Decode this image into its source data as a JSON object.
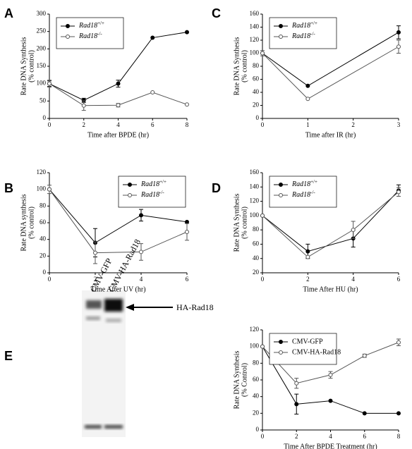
{
  "chart_data": [
    {
      "type": "line",
      "panel": "A",
      "xlabel": "Time after BPDE (hr)",
      "ylabel": [
        "Rate DNA Synthesis",
        "(% control)"
      ],
      "xlim": [
        0,
        8
      ],
      "xticks": [
        0,
        2,
        4,
        6,
        8
      ],
      "ylim": [
        0,
        300
      ],
      "yticks": [
        0,
        50,
        100,
        150,
        200,
        250,
        300
      ],
      "legend": "upper left",
      "legend_superscript": true,
      "series": [
        {
          "name": "Rad18+/+",
          "color": "#000000",
          "marker_fill": "#000000",
          "x": [
            0,
            2,
            4,
            6,
            8
          ],
          "values": [
            100,
            52,
            100,
            232,
            248
          ],
          "errors": [
            8,
            6,
            10,
            null,
            null
          ]
        },
        {
          "name": "Rad18-/-",
          "color": "#555555",
          "marker_fill": "#ffffff",
          "x": [
            0,
            2,
            4,
            6,
            8
          ],
          "values": [
            100,
            37,
            38,
            75,
            40
          ],
          "errors": [
            10,
            14,
            5,
            null,
            null
          ]
        }
      ]
    },
    {
      "type": "line",
      "panel": "C",
      "xlabel": "Time after IR (hr)",
      "ylabel": [
        "Rate DNA Synthesis",
        "(% control)"
      ],
      "xlim": [
        0,
        3
      ],
      "xticks": [
        0,
        1,
        2,
        3
      ],
      "ylim": [
        0,
        160
      ],
      "yticks": [
        0,
        20,
        40,
        60,
        80,
        100,
        120,
        140,
        160
      ],
      "legend": "upper left",
      "legend_superscript": true,
      "series": [
        {
          "name": "Rad18+/+",
          "color": "#000000",
          "marker_fill": "#000000",
          "x": [
            0,
            1,
            3
          ],
          "values": [
            100,
            50,
            132
          ],
          "errors": [
            null,
            null,
            10
          ]
        },
        {
          "name": "Rad18-/-",
          "color": "#555555",
          "marker_fill": "#ffffff",
          "x": [
            0,
            1,
            3
          ],
          "values": [
            100,
            30,
            110
          ],
          "errors": [
            4,
            null,
            10
          ]
        }
      ]
    },
    {
      "type": "line",
      "panel": "B",
      "xlabel": "Time After UV (hr)",
      "ylabel": [
        "Rate DNA synthesis",
        "(% control)"
      ],
      "xlim": [
        0,
        6
      ],
      "xticks": [
        0,
        2,
        4,
        6
      ],
      "ylim": [
        0,
        120
      ],
      "yticks": [
        0,
        20,
        40,
        60,
        80,
        100,
        120
      ],
      "legend": "upper right",
      "legend_superscript": true,
      "series": [
        {
          "name": "Rad18+/+",
          "color": "#000000",
          "marker_fill": "#000000",
          "x": [
            0,
            2,
            4,
            6
          ],
          "values": [
            100,
            36,
            69,
            61
          ],
          "errors": [
            null,
            17,
            7,
            null
          ]
        },
        {
          "name": "Rad18-/-",
          "color": "#555555",
          "marker_fill": "#ffffff",
          "x": [
            0,
            2,
            4,
            6
          ],
          "values": [
            100,
            24,
            25,
            49
          ],
          "errors": [
            5,
            13,
            10,
            10
          ]
        }
      ]
    },
    {
      "type": "line",
      "panel": "D",
      "xlabel": "Time After HU (hr)",
      "ylabel": [
        "Rate DNA Synthesis",
        "(% control)"
      ],
      "xlim": [
        0,
        6
      ],
      "xticks": [
        0,
        2,
        4,
        6
      ],
      "ylim": [
        20,
        160
      ],
      "yticks": [
        20,
        40,
        60,
        80,
        100,
        120,
        140,
        160
      ],
      "legend": "upper left",
      "legend_superscript": true,
      "series": [
        {
          "name": "Rad18+/+",
          "color": "#000000",
          "marker_fill": "#000000",
          "x": [
            0,
            2,
            4,
            6
          ],
          "values": [
            100,
            50,
            68,
            135
          ],
          "errors": [
            null,
            10,
            12,
            8
          ]
        },
        {
          "name": "Rad18-/-",
          "color": "#555555",
          "marker_fill": "#ffffff",
          "x": [
            0,
            2,
            4,
            6
          ],
          "values": [
            100,
            42,
            80,
            133
          ],
          "errors": [
            null,
            null,
            12,
            6
          ]
        }
      ]
    },
    {
      "type": "line",
      "xlabel": "Time After BPDE Treatment (hr)",
      "ylabel": [
        "Rate DNA Synthesis",
        "(% Control)"
      ],
      "xlim": [
        0,
        8
      ],
      "xticks": [
        0,
        2,
        4,
        6,
        8
      ],
      "ylim": [
        0,
        120
      ],
      "yticks": [
        0,
        20,
        40,
        60,
        80,
        100,
        120
      ],
      "legend": "upper left",
      "legend_superscript": false,
      "series": [
        {
          "name": "CMV-GFP",
          "color": "#000000",
          "marker_fill": "#000000",
          "x": [
            0,
            2,
            4,
            6,
            8
          ],
          "values": [
            100,
            31,
            35,
            20,
            20
          ],
          "errors": [
            null,
            12,
            null,
            null,
            null
          ]
        },
        {
          "name": "CMV-HA-Rad18",
          "color": "#555555",
          "marker_fill": "#ffffff",
          "x": [
            0,
            2,
            4,
            6,
            8
          ],
          "values": [
            100,
            56,
            66,
            89,
            105
          ],
          "errors": [
            null,
            6,
            4,
            2,
            4
          ]
        }
      ]
    }
  ],
  "blot": {
    "panel": "E",
    "lanes": [
      "CMV-GFP",
      "CMV-HA-Rad18"
    ],
    "band_label": "HA-Rad18"
  }
}
